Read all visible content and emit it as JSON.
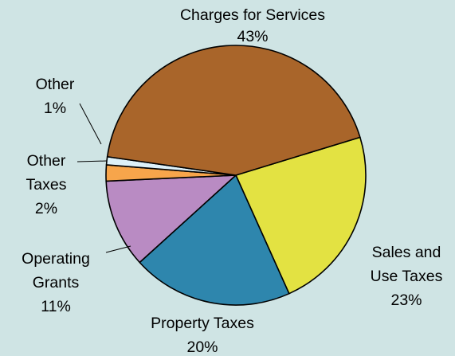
{
  "chart_data": {
    "type": "pie",
    "title": "",
    "start_angle_deg": 17,
    "direction": "clockwise",
    "edge_color": "#000000",
    "slices": [
      {
        "label_lines": [
          "Sales and",
          "Use Taxes"
        ],
        "value": 23,
        "value_text": "23%",
        "color": "#e3e242"
      },
      {
        "label_lines": [
          "Property Taxes"
        ],
        "value": 20,
        "value_text": "20%",
        "color": "#2e86ad"
      },
      {
        "label_lines": [
          "Operating",
          "Grants"
        ],
        "value": 11,
        "value_text": "11%",
        "color": "#b98bc3"
      },
      {
        "label_lines": [
          "Other",
          "Taxes"
        ],
        "value": 2,
        "value_text": "2%",
        "color": "#f7a54b"
      },
      {
        "label_lines": [
          "Other"
        ],
        "value": 1,
        "value_text": "1%",
        "color": "#ddf1f9"
      },
      {
        "label_lines": [
          "Charges for Services"
        ],
        "value": 43,
        "value_text": "43%",
        "color": "#a9652a"
      }
    ]
  }
}
